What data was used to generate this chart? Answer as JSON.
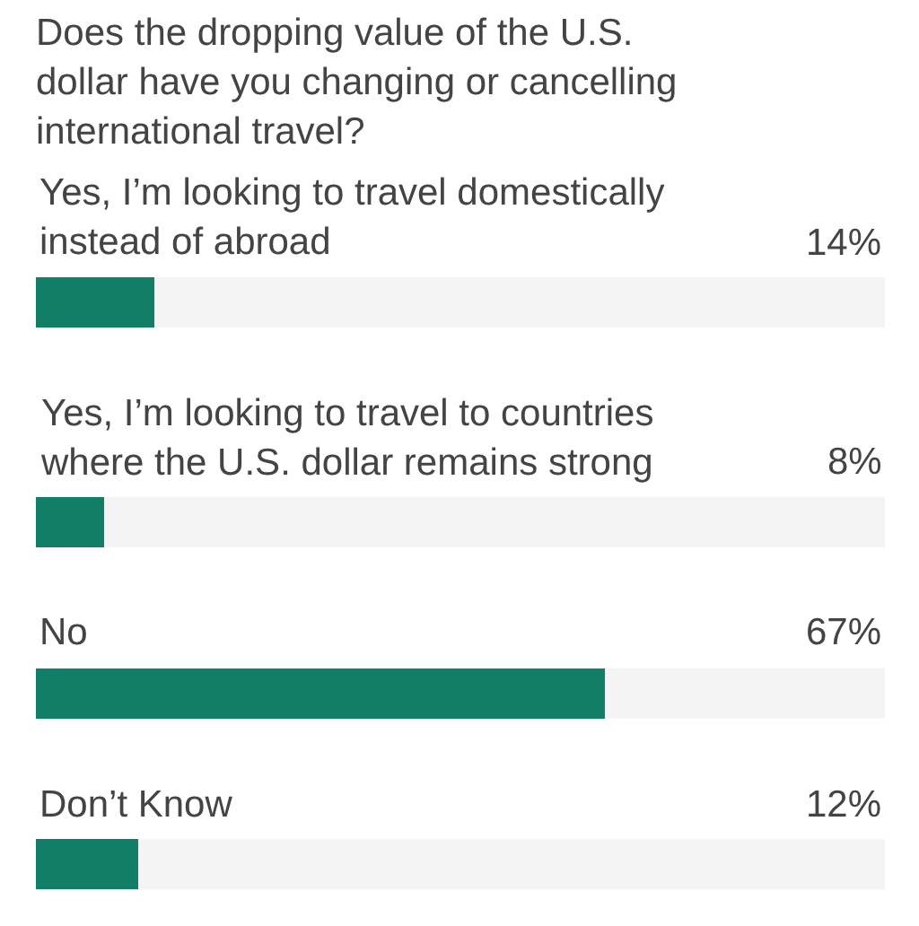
{
  "chart_data": {
    "type": "bar",
    "title": "Does the dropping value of the U.S. dollar have you changing or cancelling international travel?",
    "orientation": "horizontal",
    "categories": [
      "Yes, I’m looking to travel domestically instead of abroad",
      "Yes, I’m looking to travel to countries where the U.S. dollar remains strong",
      "No",
      "Don’t Know"
    ],
    "values": [
      14,
      8,
      67,
      12
    ],
    "value_labels": [
      "14%",
      "8%",
      "67%",
      "12%"
    ],
    "color": "#117e66",
    "xlim": [
      0,
      100
    ]
  }
}
